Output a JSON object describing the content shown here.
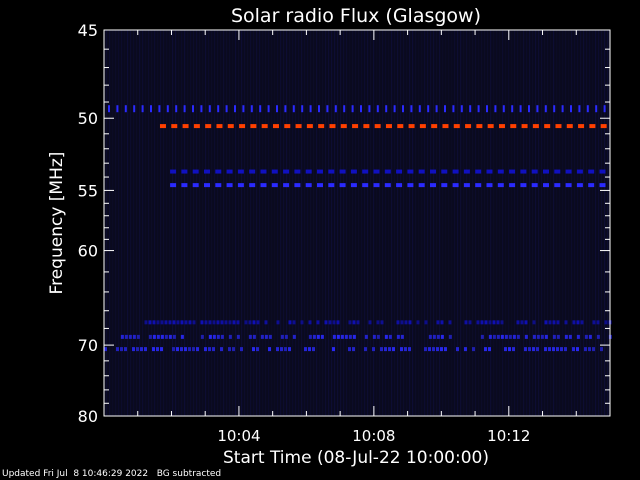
{
  "chart_data": {
    "type": "heatmap",
    "title": "Solar radio Flux (Glasgow)",
    "xlabel": "Start Time (08-Jul-22 10:00:00)",
    "ylabel": "Frequency [MHz]",
    "x_ticks": [
      "10:04",
      "10:08",
      "10:12"
    ],
    "x_tick_minutes": [
      4,
      8,
      12
    ],
    "xlim_minutes": [
      0,
      15
    ],
    "y_ticks": [
      45,
      50,
      55,
      60,
      70,
      80
    ],
    "ylim": [
      45,
      80
    ],
    "y_scale": "reciprocal",
    "colors": {
      "background": "#0a0a1e",
      "weak": "#1010c0",
      "medium": "#2a2aff",
      "strong": "#ff4000"
    },
    "features": [
      {
        "label": "interference band",
        "freq_mhz": 49.5,
        "minutes": [
          0,
          15
        ],
        "intensity": "medium",
        "pattern": "tick-marks"
      },
      {
        "label": "interference band",
        "freq_mhz": 50.5,
        "minutes": [
          1.6,
          15
        ],
        "intensity": "strong",
        "pattern": "dashed"
      },
      {
        "label": "interference band",
        "freq_mhz": 53.6,
        "minutes": [
          1.9,
          15
        ],
        "intensity": "weak",
        "pattern": "dashed"
      },
      {
        "label": "interference band",
        "freq_mhz": 54.6,
        "minutes": [
          1.9,
          15
        ],
        "intensity": "medium",
        "pattern": "dashed"
      },
      {
        "label": "broadband activity",
        "freq_mhz": 67.3,
        "minutes": [
          1.2,
          15
        ],
        "intensity": "weak",
        "pattern": "patchy"
      },
      {
        "label": "broadband activity",
        "freq_mhz": 69.0,
        "minutes": [
          0.5,
          15
        ],
        "intensity": "medium",
        "pattern": "patchy"
      },
      {
        "label": "broadband activity",
        "freq_mhz": 70.5,
        "minutes": [
          0,
          15
        ],
        "intensity": "medium",
        "pattern": "patchy"
      }
    ]
  },
  "footer": {
    "updated": "Updated Fri Jul  8 10:46:29 2022",
    "note": "BG subtracted"
  }
}
